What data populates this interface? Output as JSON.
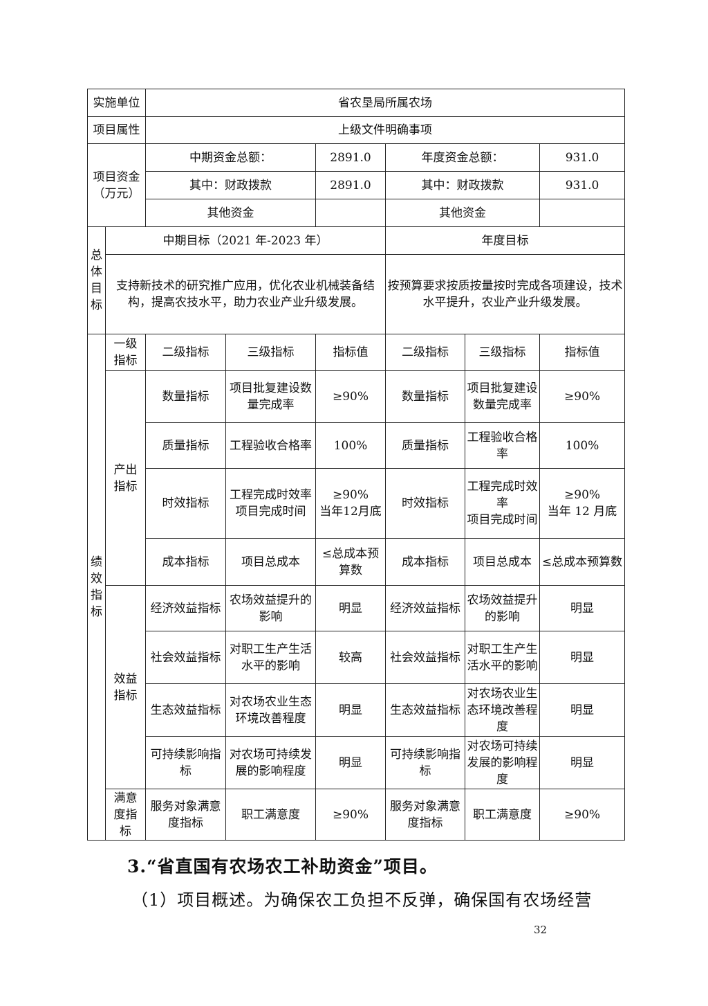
{
  "table": {
    "unit_label": "实施单位",
    "unit_value": "省农垦局所属农场",
    "attr_label": "项目属性",
    "attr_value": "上级文件明确事项",
    "funds_label": "项目资金\n（万元）",
    "mid_total_label": "中期资金总额：",
    "mid_total_value": "2891.0",
    "year_total_label": "年度资金总额：",
    "year_total_value": "931.0",
    "fiscal_label": "其中：财政拨款",
    "mid_fiscal_value": "2891.0",
    "year_fiscal_value": "931.0",
    "other_label": "其他资金",
    "goal_label": "总\n体\n目\n标",
    "mid_goal_header": "中期目标（2021 年-2023 年）",
    "year_goal_header": "年度目标",
    "mid_goal_text": "支持新技术的研究推广应用，优化农业机械装备结构，提高农技水平，助力农业产业升级发展。",
    "year_goal_text": "按预算要求按质按量按时完成各项建设，技术水平提升，农业产业升级发展。",
    "perf_label": "绩\n效\n指\n标",
    "headers": [
      "一级\n指标",
      "二级指标",
      "三级指标",
      "指标值",
      "二级指标",
      "三级指标",
      "指标值"
    ],
    "groups": [
      {
        "label": "产出\n指标",
        "rows": [
          [
            "数量指标",
            "项目批复建设数量完成率",
            "≥90%",
            "数量指标",
            "项目批复建设数量完成率",
            "≥90%"
          ],
          [
            "质量指标",
            "工程验收合格率",
            "100%",
            "质量指标",
            "工程验收合格率",
            "100%"
          ],
          [
            "时效指标",
            "工程完成时效率\n项目完成时间",
            "≥90%\n当年12月底",
            "时效指标",
            "工程完成时效率\n项目完成时间",
            "≥90%\n当年 12 月底"
          ],
          [
            "成本指标",
            "项目总成本",
            "≤总成本预算数",
            "成本指标",
            "项目总成本",
            "≤总成本预算数"
          ]
        ]
      },
      {
        "label": "效益\n指标",
        "rows": [
          [
            "经济效益指标",
            "农场效益提升的影响",
            "明显",
            "经济效益指标",
            "农场效益提升的影响",
            "明显"
          ],
          [
            "社会效益指标",
            "对职工生产生活水平的影响",
            "较高",
            "社会效益指标",
            "对职工生产生活水平的影响",
            "明显"
          ],
          [
            "生态效益指标",
            "对农场农业生态环境改善程度",
            "明显",
            "生态效益指标",
            "对农场农业生态环境改善程度",
            "明显"
          ],
          [
            "可持续影响指标",
            "对农场可持续发展的影响程度",
            "明显",
            "可持续影响指标",
            "对农场可持续发展的影响程度",
            "明显"
          ]
        ]
      },
      {
        "label": "满意\n度指\n标",
        "rows": [
          [
            "服务对象满意度指标",
            "职工满意度",
            "≥90%",
            "服务对象满意度指标",
            "职工满意度",
            "≥90%"
          ]
        ]
      }
    ]
  },
  "heading": "3.“省直国有农场农工补助资金”项目。",
  "paragraph": "（1）项目概述。为确保农工负担不反弹，确保国有农场经营",
  "page_number": "32"
}
